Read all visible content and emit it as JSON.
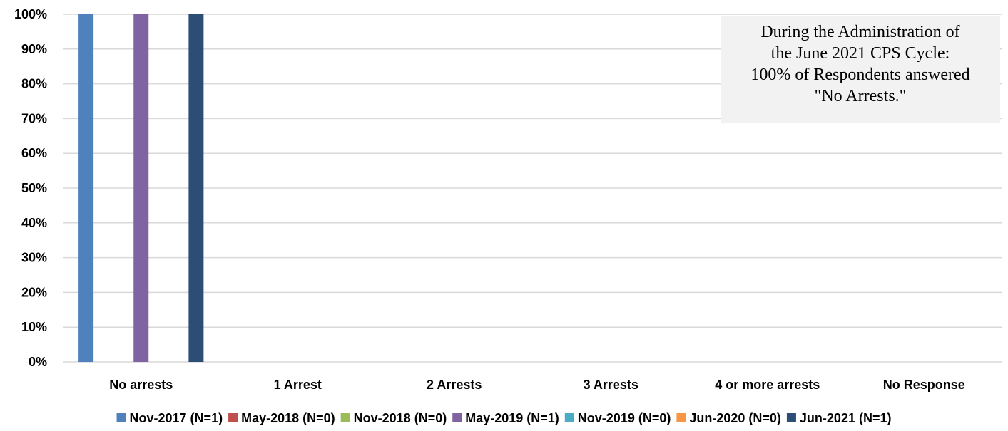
{
  "chart_data": {
    "type": "bar",
    "categories": [
      "No arrests",
      "1 Arrest",
      "2 Arrests",
      "3 Arrests",
      "4 or more arrests",
      "No Response"
    ],
    "series": [
      {
        "name": "Nov-2017 (N=1)",
        "color": "#4f81bd",
        "values": [
          1.0,
          0,
          0,
          0,
          0,
          0
        ]
      },
      {
        "name": "May-2018 (N=0)",
        "color": "#c0504d",
        "values": [
          0,
          0,
          0,
          0,
          0,
          0
        ]
      },
      {
        "name": "Nov-2018 (N=0)",
        "color": "#9bbb59",
        "values": [
          0,
          0,
          0,
          0,
          0,
          0
        ]
      },
      {
        "name": "May-2019 (N=1)",
        "color": "#8064a2",
        "values": [
          1.0,
          0,
          0,
          0,
          0,
          0
        ]
      },
      {
        "name": "Nov-2019 (N=0)",
        "color": "#4bacc6",
        "values": [
          0,
          0,
          0,
          0,
          0,
          0
        ]
      },
      {
        "name": "Jun-2020 (N=0)",
        "color": "#f79646",
        "values": [
          0,
          0,
          0,
          0,
          0,
          0
        ]
      },
      {
        "name": "Jun-2021 (N=1)",
        "color": "#2c4d75",
        "values": [
          1.0,
          0,
          0,
          0,
          0,
          0
        ]
      }
    ],
    "yticks": [
      "0%",
      "10%",
      "20%",
      "30%",
      "40%",
      "50%",
      "60%",
      "70%",
      "80%",
      "90%",
      "100%"
    ],
    "ylim": [
      0,
      1
    ],
    "grid": true,
    "legend_position": "bottom",
    "annotation": [
      "During the Administration of",
      "the June 2021 CPS Cycle:",
      "100% of Respondents answered",
      "\"No Arrests.\""
    ]
  }
}
